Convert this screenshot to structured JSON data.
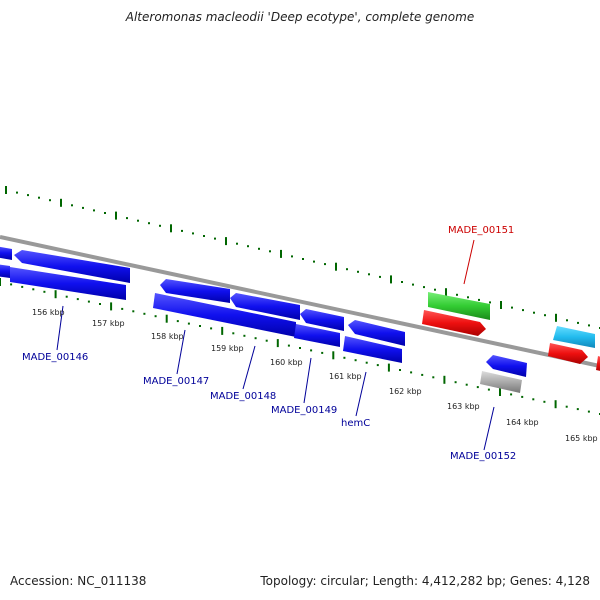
{
  "title": "Alteromonas macleodii 'Deep ecotype', complete genome",
  "footer": {
    "accession": "Accession: NC_011138",
    "summary": "Topology: circular; Length: 4,412,282 bp; Genes: 4,128"
  },
  "colors": {
    "blue": "#1010ee",
    "red": "#ee1010",
    "green": "#33cc33",
    "cyan": "#22bbee",
    "grey": "#aaaaaa",
    "tick": "#006600",
    "label": "#000099",
    "highlight": "#cc0000",
    "backbone": "#888888"
  },
  "scale_labels": [
    "156 kbp",
    "157 kbp",
    "158 kbp",
    "159 kbp",
    "160 kbp",
    "161 kbp",
    "162 kbp",
    "163 kbp",
    "164 kbp",
    "165 kbp"
  ],
  "gene_labels": [
    "MADE_00146",
    "MADE_00147",
    "MADE_00148",
    "MADE_00149",
    "hemC",
    "MADE_00151",
    "MADE_00152"
  ]
}
